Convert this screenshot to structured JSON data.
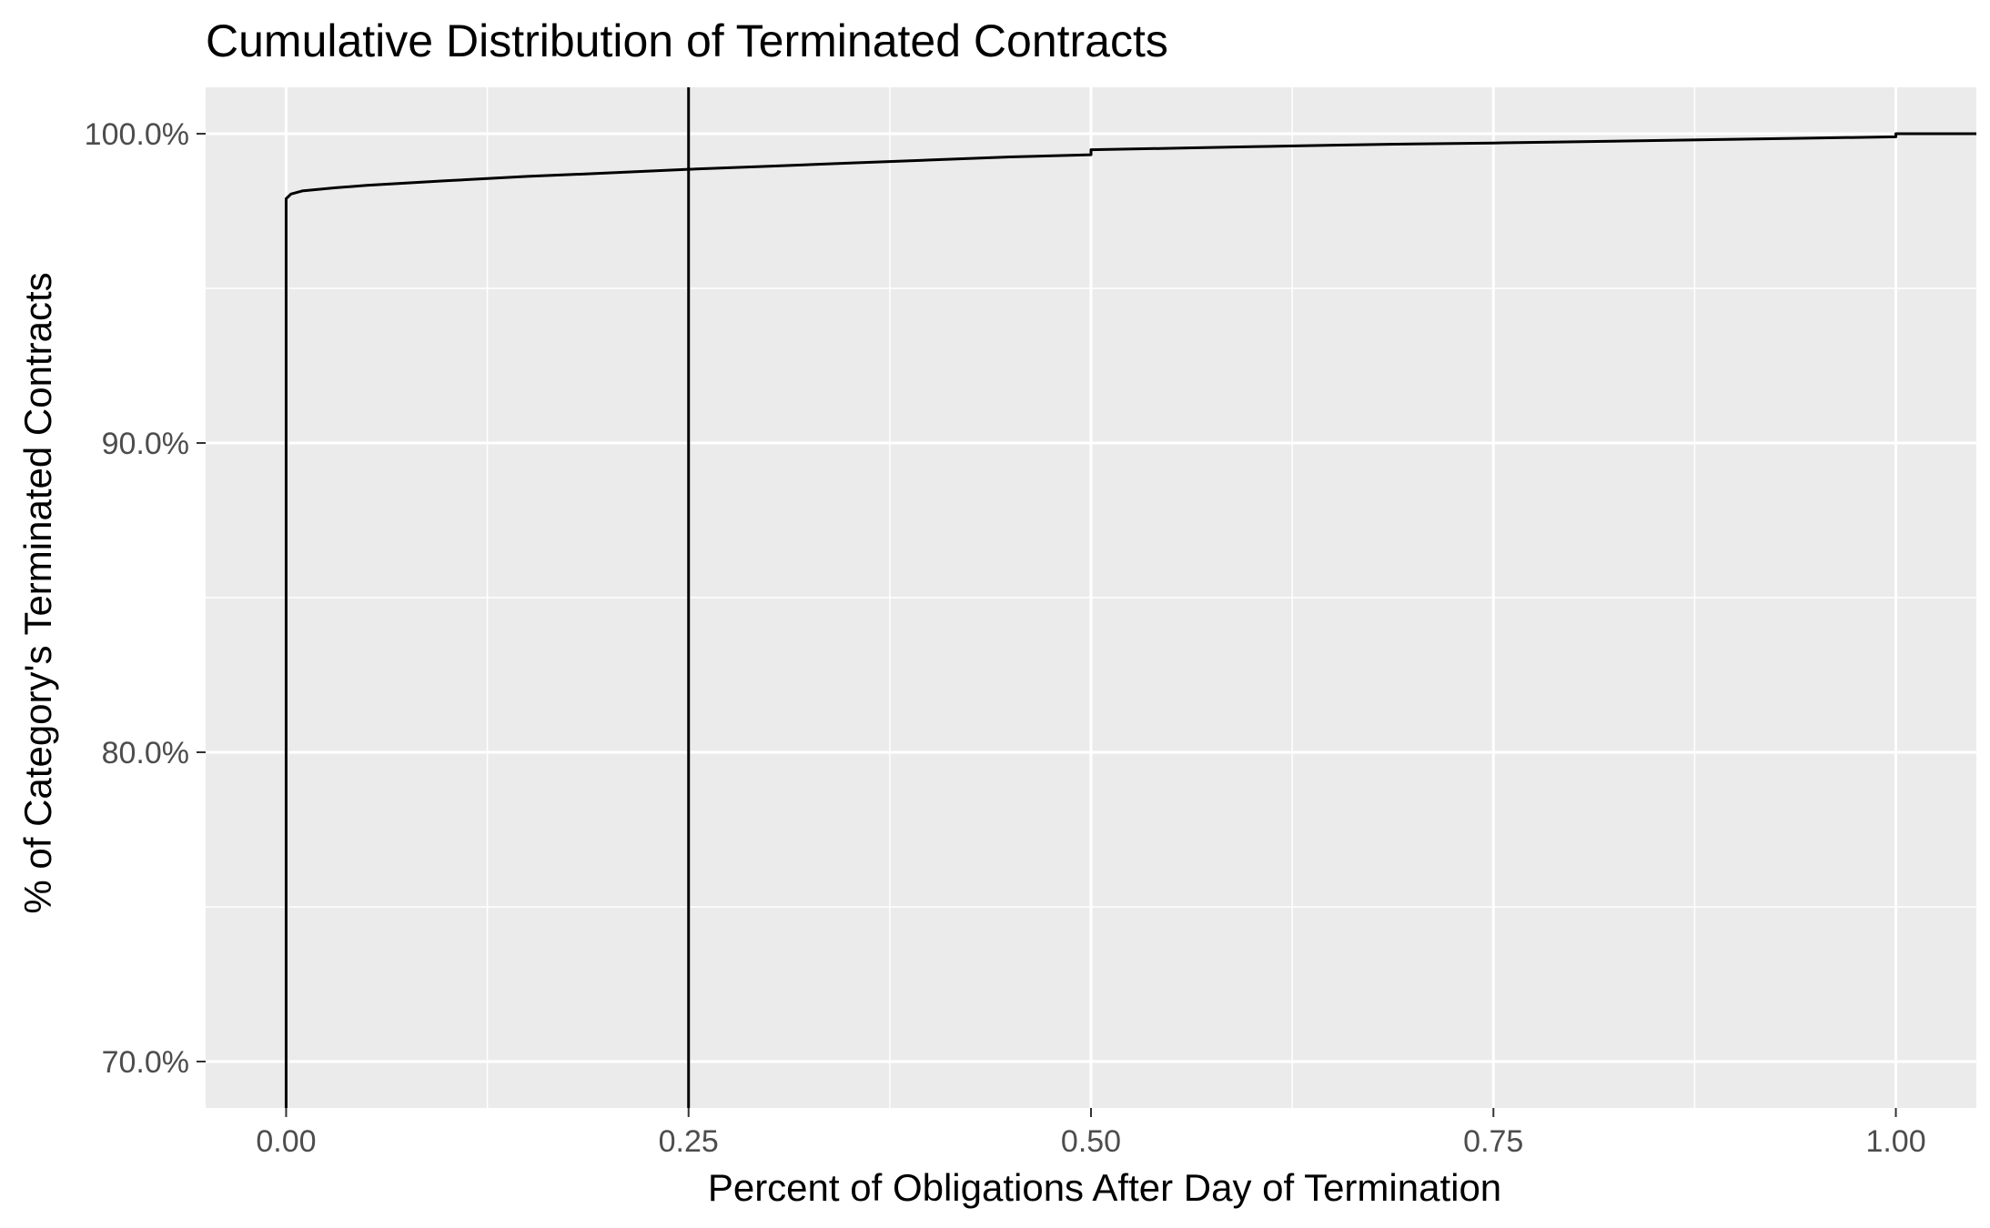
{
  "chart_data": {
    "type": "line",
    "title": "Cumulative Distribution of Terminated Contracts",
    "xlabel": "Percent of Obligations After Day of Termination",
    "ylabel": "% of Category's Terminated Contracts",
    "xlim": [
      -0.05,
      1.05
    ],
    "ylim": [
      0.685,
      1.015
    ],
    "x_ticks": [
      {
        "value": 0.0,
        "label": "0.00"
      },
      {
        "value": 0.25,
        "label": "0.25"
      },
      {
        "value": 0.5,
        "label": "0.50"
      },
      {
        "value": 0.75,
        "label": "0.75"
      },
      {
        "value": 1.0,
        "label": "1.00"
      }
    ],
    "y_ticks": [
      {
        "value": 0.7,
        "label": "70.0%"
      },
      {
        "value": 0.8,
        "label": "80.0%"
      },
      {
        "value": 0.9,
        "label": "90.0%"
      },
      {
        "value": 1.0,
        "label": "100.0%"
      }
    ],
    "x_minor_gridlines": [
      0.125,
      0.375,
      0.625,
      0.875
    ],
    "y_minor_gridlines": [
      0.75,
      0.85,
      0.95
    ],
    "grid": true,
    "panel_background": "#ebebeb",
    "gridline_color": "#ffffff",
    "line_color": "#000000",
    "reference_lines": [
      {
        "orientation": "vertical",
        "x": 0.25
      }
    ],
    "series": [
      {
        "points": [
          {
            "x": 0.0,
            "y": 0.685
          },
          {
            "x": 0.0,
            "y": 0.979
          },
          {
            "x": 0.003,
            "y": 0.9805
          },
          {
            "x": 0.01,
            "y": 0.9815
          },
          {
            "x": 0.03,
            "y": 0.9825
          },
          {
            "x": 0.05,
            "y": 0.9833
          },
          {
            "x": 0.1,
            "y": 0.9848
          },
          {
            "x": 0.15,
            "y": 0.9862
          },
          {
            "x": 0.2,
            "y": 0.9873
          },
          {
            "x": 0.25,
            "y": 0.9885
          },
          {
            "x": 0.3,
            "y": 0.9895
          },
          {
            "x": 0.35,
            "y": 0.9905
          },
          {
            "x": 0.4,
            "y": 0.9915
          },
          {
            "x": 0.45,
            "y": 0.9925
          },
          {
            "x": 0.5,
            "y": 0.9932
          },
          {
            "x": 0.5,
            "y": 0.9948
          },
          {
            "x": 0.55,
            "y": 0.9953
          },
          {
            "x": 0.6,
            "y": 0.9958
          },
          {
            "x": 0.65,
            "y": 0.9963
          },
          {
            "x": 0.7,
            "y": 0.9967
          },
          {
            "x": 0.75,
            "y": 0.997
          },
          {
            "x": 0.8,
            "y": 0.9974
          },
          {
            "x": 0.85,
            "y": 0.9978
          },
          {
            "x": 0.9,
            "y": 0.9982
          },
          {
            "x": 0.95,
            "y": 0.9986
          },
          {
            "x": 1.0,
            "y": 0.999
          },
          {
            "x": 1.0,
            "y": 1.0
          },
          {
            "x": 1.05,
            "y": 1.0
          }
        ]
      }
    ]
  }
}
